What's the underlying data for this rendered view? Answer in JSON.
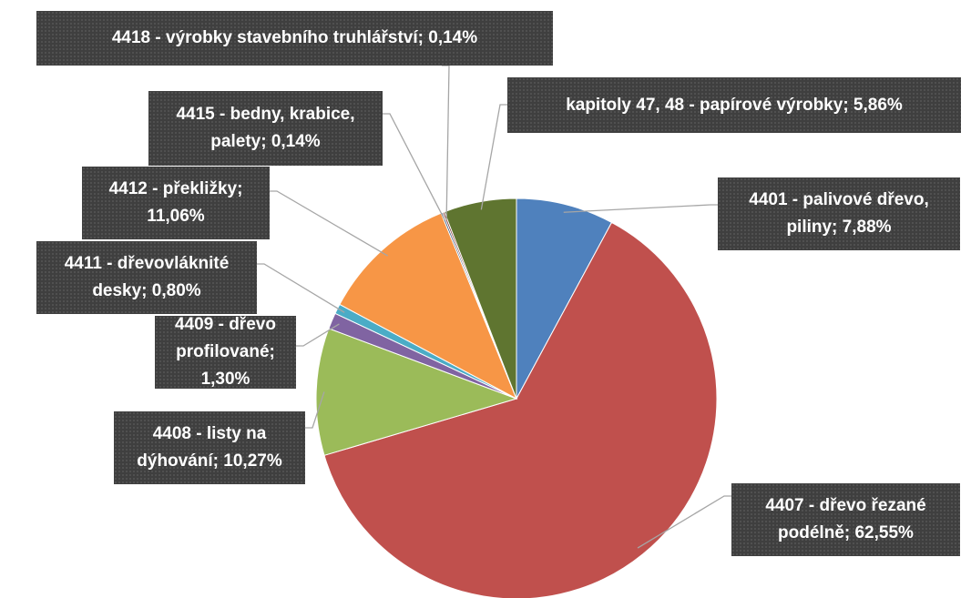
{
  "chart_data": {
    "type": "pie",
    "values": [
      7.88,
      62.55,
      10.27,
      1.3,
      0.8,
      11.06,
      0.14,
      0.14,
      5.86
    ],
    "value_labels": [
      "4401 - palivové dřevo, piliny; 7,88%",
      "4407 - dřevo řezané podélně; 62,55%",
      "4408 - listy na dýhování; 10,27%",
      "4409 - dřevo profilované; 1,30%",
      "4411 - dřevovláknité desky; 0,80%",
      "4412 - překližky; 11,06%",
      "4415 - bedny, krabice, palety; 0,14%",
      "4418 - výrobky stavebního truhlářství; 0,14%",
      "kapitoly 47, 48 - papírové výrobky; 5,86%"
    ],
    "colors": [
      "#4f81bd",
      "#c0504d",
      "#9bbb59",
      "#8064a2",
      "#4bacc6",
      "#f79646",
      "#2c4d75",
      "#772c2a",
      "#5f7530"
    ]
  }
}
